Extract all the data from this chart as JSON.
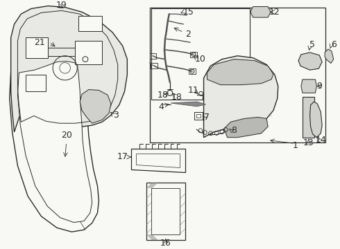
{
  "bg_color": "#f8f8f5",
  "line_color": "#2a2a2a",
  "gray_fill": "#d0d0cc",
  "light_gray": "#e8e8e4",
  "white": "#ffffff"
}
